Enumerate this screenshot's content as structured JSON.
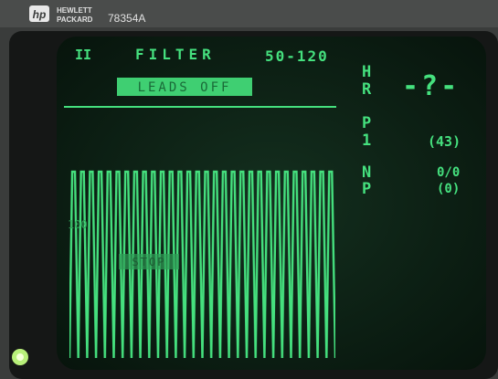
{
  "header": {
    "brand_line1": "HEWLETT",
    "brand_line2": "PACKARD",
    "model": "78354A"
  },
  "screen": {
    "lead": "II",
    "filter_label": "FILTER",
    "filter_range": "50-120",
    "alarm": "LEADS OFF",
    "hr_label": [
      "H",
      "R"
    ],
    "hr_value": "-?-",
    "p1_label": [
      "P",
      "1"
    ],
    "p1_value": "(43)",
    "np_label": [
      "N",
      "P"
    ],
    "np_value": "0/0",
    "np_sub": "(0)",
    "scale": "100",
    "status": "STOP"
  }
}
